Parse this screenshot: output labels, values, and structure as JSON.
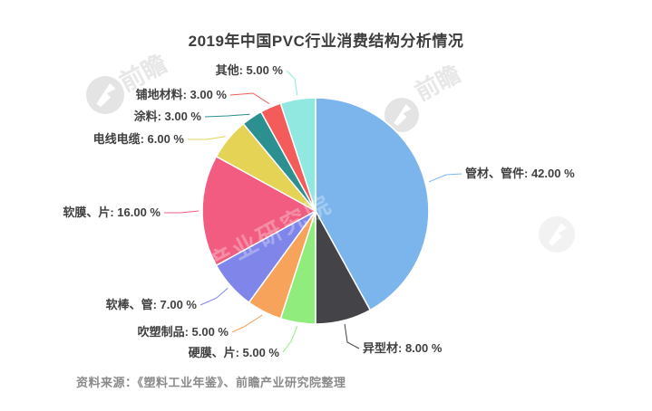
{
  "title": "2019年中国PVC行业消费结构分析情况",
  "source_note": "资料来源：《塑料工业年鉴》、前瞻产业研究院整理",
  "watermarks": {
    "logo_icon": "qianzhan-circle-logo",
    "brand_short": "前瞻",
    "brand_diagonal": "前瞻产业研究院"
  },
  "chart_data": {
    "type": "pie",
    "title": "2019年中国PVC行业消费结构分析情况",
    "unit": "%",
    "start_angle_deg": 0,
    "direction": "clockwise",
    "legend_position": "none",
    "data_labels": "outside with colored connector lines",
    "categories": [
      "管材、管件",
      "异型材",
      "硬膜、片",
      "吹塑制品",
      "软棒、管",
      "软膜、片",
      "电线电缆",
      "涂料",
      "铺地材料",
      "其他"
    ],
    "values": [
      42,
      8,
      5,
      5,
      7,
      16,
      6,
      3,
      3,
      5
    ],
    "colors": [
      "#7cb5ec",
      "#434348",
      "#90ed7d",
      "#f7a35c",
      "#8085e9",
      "#f15c80",
      "#e4d354",
      "#2b908f",
      "#f45b5b",
      "#91e8e1"
    ],
    "label_texts": [
      "管材、管件: 42.00 %",
      "异型材: 8.00 %",
      "硬膜、片: 5.00 %",
      "吹塑制品: 5.00 %",
      "软棒、管: 7.00 %",
      "软膜、片: 16.00 %",
      "电线电缆: 6.00 %",
      "涂料: 3.00 %",
      "铺地材料: 3.00 %",
      "其他: 5.00 %"
    ]
  }
}
